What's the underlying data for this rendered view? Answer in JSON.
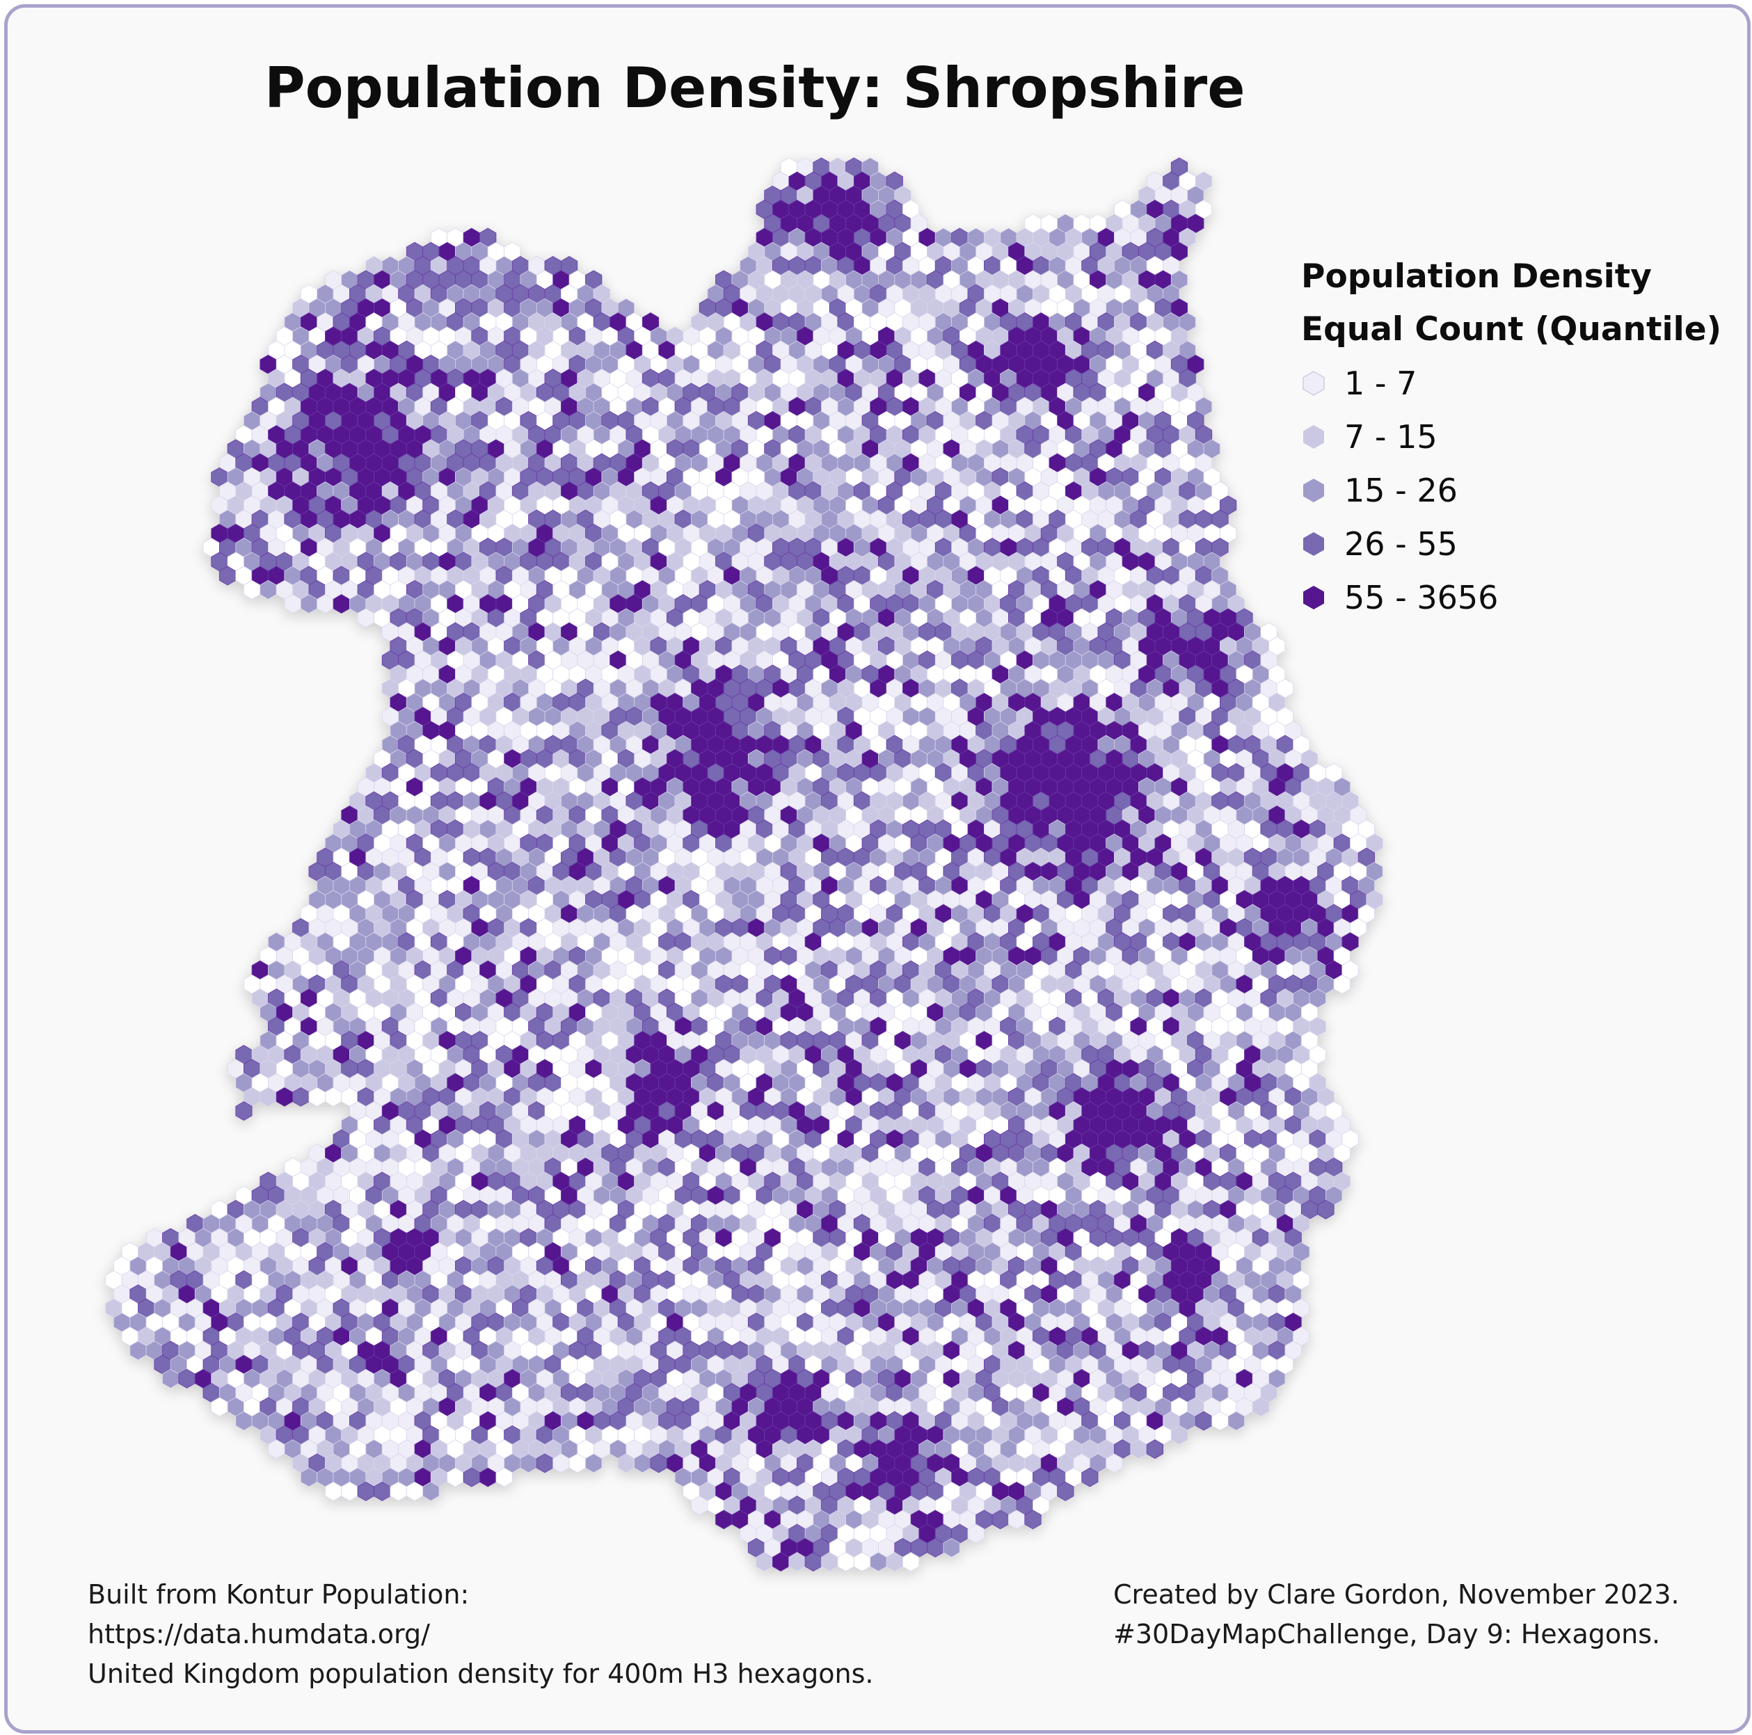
{
  "title": "Population Density: Shropshire",
  "legend": {
    "title_line1": "Population Density",
    "title_line2": "Equal Count (Quantile)",
    "classes": [
      {
        "label": "1 - 7",
        "color": "#efedf7"
      },
      {
        "label": "7 - 15",
        "color": "#cbc8e3"
      },
      {
        "label": "15 - 26",
        "color": "#9e9aca"
      },
      {
        "label": "26 - 55",
        "color": "#7869b2"
      },
      {
        "label": "55 - 3656",
        "color": "#55168f"
      }
    ]
  },
  "credits": {
    "left_line1": "Built from Kontur Population:",
    "left_line2": "https://data.humdata.org/",
    "left_line3": "United Kingdom population density for 400m H3 hexagons.",
    "right_line1": "Created by Clare Gordon, November 2023.",
    "right_line2": "#30DayMapChallenge, Day 9: Hexagons."
  },
  "colors": {
    "frame_border": "#a7a3cc",
    "background": "#f9f9f9",
    "no_data": "#ffffff"
  }
}
